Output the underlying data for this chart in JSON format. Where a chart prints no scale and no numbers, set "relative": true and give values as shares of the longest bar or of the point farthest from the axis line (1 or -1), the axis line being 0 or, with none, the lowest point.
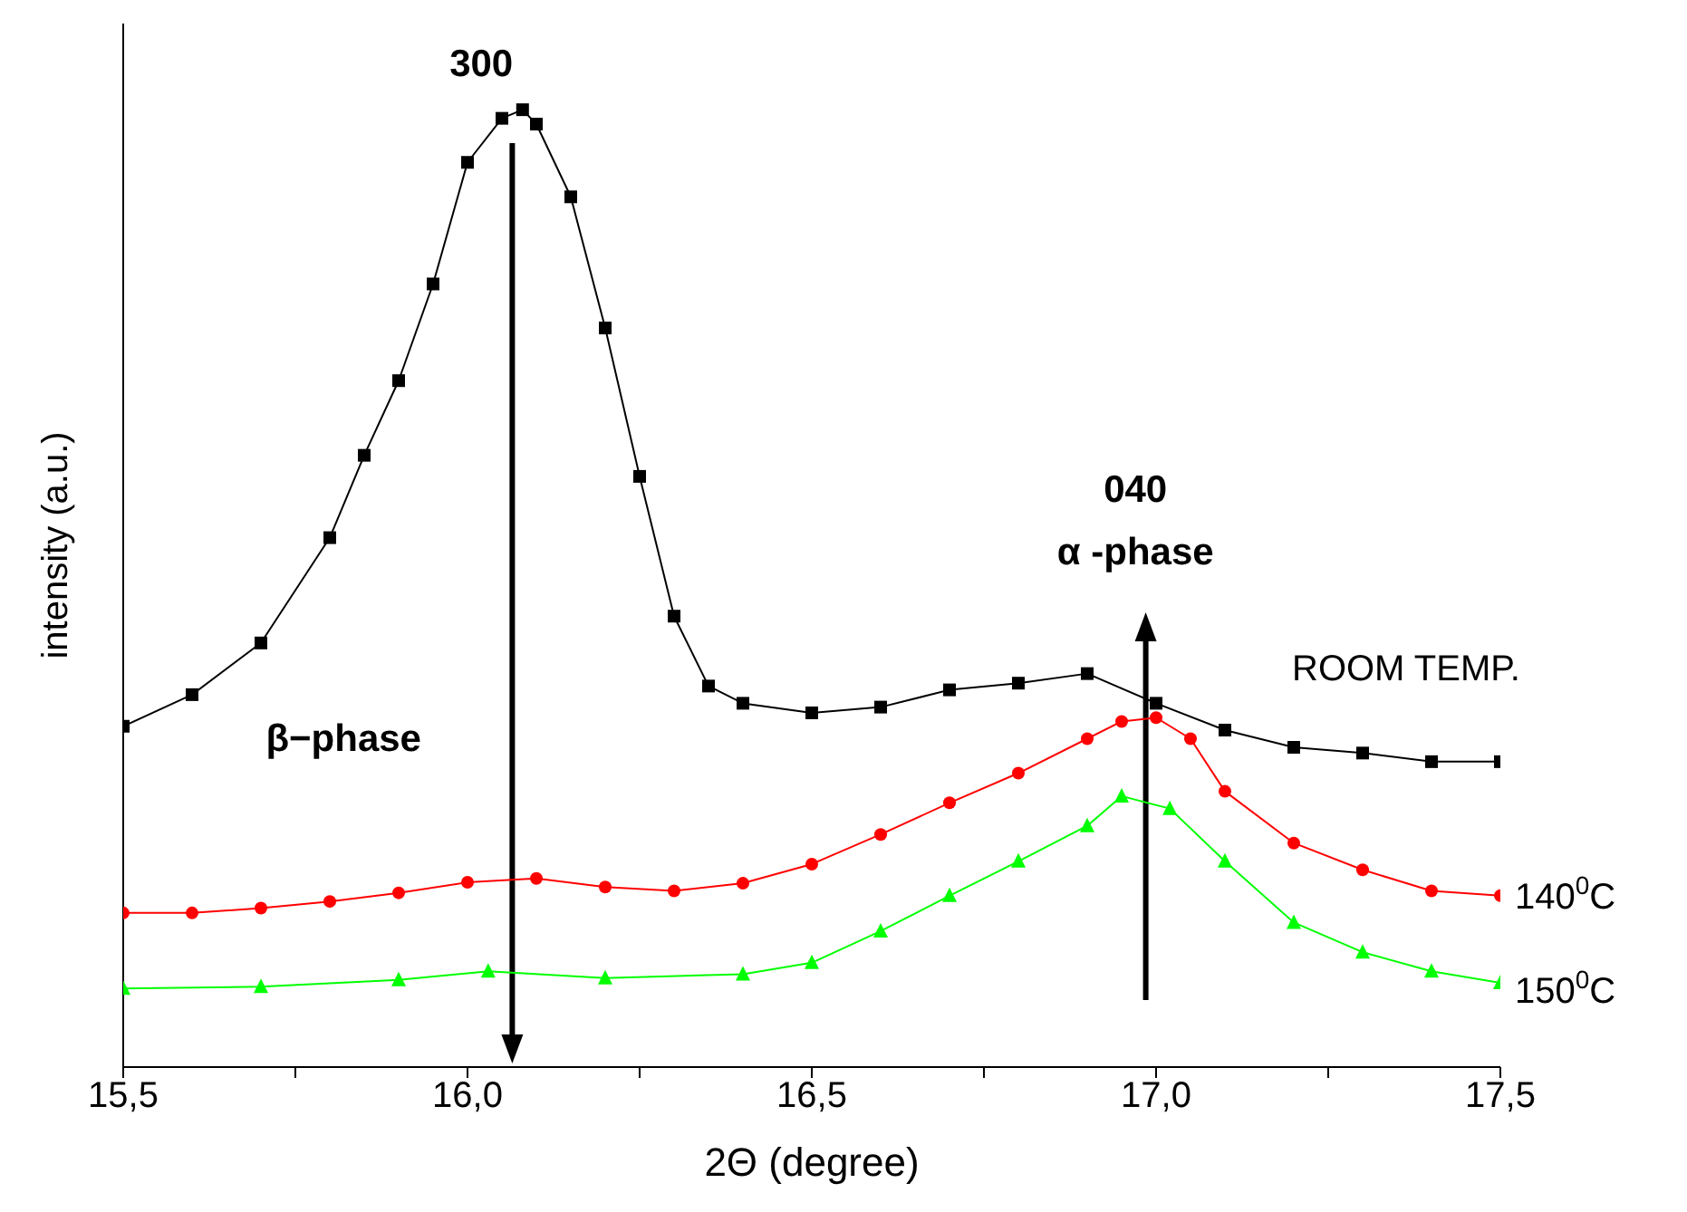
{
  "chart_data": {
    "type": "line",
    "relative": true,
    "xlabel": "2Θ  (degree)",
    "ylabel": "intensity (a.u.)",
    "xlim": [
      15.5,
      17.5
    ],
    "xticks": [
      {
        "value": 15.5,
        "label": "15,5"
      },
      {
        "value": 15.75,
        "label": null
      },
      {
        "value": 16.0,
        "label": "16,0"
      },
      {
        "value": 16.25,
        "label": null
      },
      {
        "value": 16.5,
        "label": "16,5"
      },
      {
        "value": 16.75,
        "label": null
      },
      {
        "value": 17.0,
        "label": "17,0"
      },
      {
        "value": 17.25,
        "label": null
      },
      {
        "value": 17.5,
        "label": "17,5"
      }
    ],
    "annotations": [
      "300",
      "040",
      "α -phase",
      "β−phase"
    ],
    "series": [
      {
        "name": "ROOM TEMP.",
        "color": "#000000",
        "marker": "square",
        "x": [
          15.5,
          15.6,
          15.7,
          15.8,
          15.85,
          15.9,
          15.95,
          16.0,
          16.05,
          16.08,
          16.1,
          16.15,
          16.2,
          16.25,
          16.3,
          16.35,
          16.4,
          16.5,
          16.6,
          16.7,
          16.8,
          16.9,
          17.0,
          17.1,
          17.2,
          17.3,
          17.4,
          17.5
        ],
        "values": [
          0.356,
          0.389,
          0.443,
          0.553,
          0.639,
          0.717,
          0.818,
          0.945,
          0.991,
          1,
          0.985,
          0.909,
          0.772,
          0.617,
          0.471,
          0.398,
          0.38,
          0.37,
          0.376,
          0.394,
          0.401,
          0.411,
          0.38,
          0.352,
          0.334,
          0.328,
          0.319,
          0.319
        ]
      },
      {
        "name": "140$^{0}$C",
        "color": "#ff0000",
        "marker": "circle",
        "x": [
          15.5,
          15.6,
          15.7,
          15.8,
          15.9,
          16.0,
          16.1,
          16.2,
          16.3,
          16.4,
          16.5,
          16.6,
          16.7,
          16.8,
          16.9,
          16.95,
          17.0,
          17.05,
          17.1,
          17.2,
          17.3,
          17.4,
          17.5
        ],
        "values": [
          0.161,
          0.161,
          0.166,
          0.173,
          0.182,
          0.193,
          0.197,
          0.188,
          0.184,
          0.192,
          0.212,
          0.243,
          0.276,
          0.307,
          0.343,
          0.361,
          0.365,
          0.343,
          0.288,
          0.234,
          0.206,
          0.184,
          0.179
        ]
      },
      {
        "name": "150$^{0}$C",
        "color": "#00ff00",
        "marker": "triangle",
        "x": [
          15.5,
          15.7,
          15.9,
          16.03,
          16.2,
          16.4,
          16.5,
          16.6,
          16.7,
          16.8,
          16.9,
          16.95,
          17.02,
          17.1,
          17.2,
          17.3,
          17.4,
          17.5
        ],
        "values": [
          0.082,
          0.084,
          0.091,
          0.1,
          0.093,
          0.097,
          0.109,
          0.142,
          0.179,
          0.215,
          0.252,
          0.283,
          0.27,
          0.215,
          0.151,
          0.12,
          0.1,
          0.088
        ]
      }
    ]
  }
}
